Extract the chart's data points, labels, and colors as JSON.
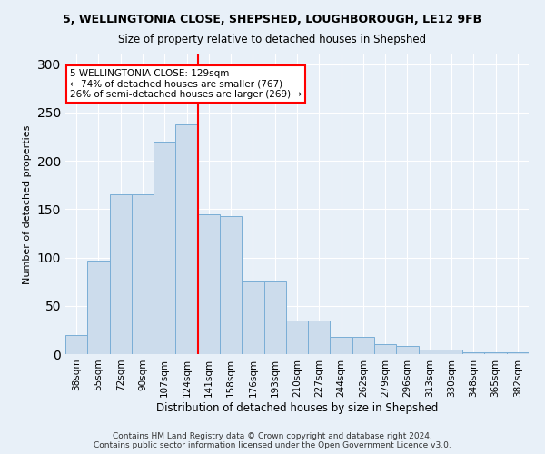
{
  "title_line1": "5, WELLINGTONIA CLOSE, SHEPSHED, LOUGHBOROUGH, LE12 9FB",
  "title_line2": "Size of property relative to detached houses in Shepshed",
  "xlabel": "Distribution of detached houses by size in Shepshed",
  "ylabel": "Number of detached properties",
  "footer_line1": "Contains HM Land Registry data © Crown copyright and database right 2024.",
  "footer_line2": "Contains public sector information licensed under the Open Government Licence v3.0.",
  "bin_labels": [
    "38sqm",
    "55sqm",
    "72sqm",
    "90sqm",
    "107sqm",
    "124sqm",
    "141sqm",
    "158sqm",
    "176sqm",
    "193sqm",
    "210sqm",
    "227sqm",
    "244sqm",
    "262sqm",
    "279sqm",
    "296sqm",
    "313sqm",
    "330sqm",
    "348sqm",
    "365sqm",
    "382sqm"
  ],
  "bar_heights": [
    20,
    97,
    165,
    165,
    220,
    238,
    145,
    143,
    75,
    75,
    35,
    35,
    18,
    18,
    10,
    8,
    5,
    5,
    2,
    2,
    2
  ],
  "bar_color": "#ccdcec",
  "bar_edge_color": "#7aaed6",
  "vline_x": 5.5,
  "annotation_text": "5 WELLINGTONIA CLOSE: 129sqm\n← 74% of detached houses are smaller (767)\n26% of semi-detached houses are larger (269) →",
  "annotation_box_color": "white",
  "annotation_box_edge_color": "red",
  "vline_color": "red",
  "ylim": [
    0,
    310
  ],
  "yticks": [
    0,
    50,
    100,
    150,
    200,
    250,
    300
  ],
  "background_color": "#e8f0f8",
  "grid_color": "white",
  "title1_fontsize": 9.0,
  "title2_fontsize": 8.5,
  "ylabel_fontsize": 8.0,
  "xlabel_fontsize": 8.5,
  "tick_fontsize": 7.5,
  "footer_fontsize": 6.5
}
